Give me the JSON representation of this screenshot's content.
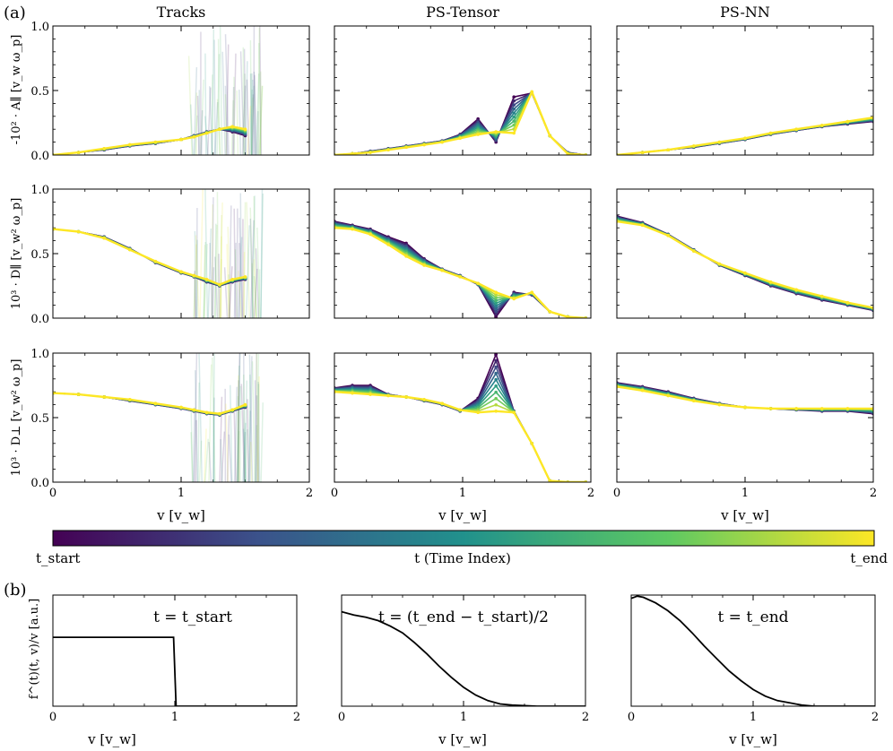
{
  "figure": {
    "panel_a_label": "(a)",
    "panel_b_label": "(b)",
    "col_titles": [
      "Tracks",
      "PS-Tensor",
      "PS-NN"
    ],
    "row_ylabels": [
      "-10² · A∥ [v_w ω_p]",
      "10³ · D∥ [v_w² ω_p]",
      "10³ · D⊥ [v_w² ω_p]"
    ],
    "xlabel": "v [v_w]",
    "colorbar": {
      "label": "t (Time Index)",
      "start_label": "t_start",
      "end_label": "t_end",
      "colors": [
        "#440154",
        "#3b528b",
        "#21918c",
        "#5ec962",
        "#fde725"
      ]
    },
    "b_ylabel": "f^(t)(t, v)/v [a.u.]",
    "b_titles": [
      "t = t_start",
      "t = (t_end − t_start)/2",
      "t = t_end"
    ]
  },
  "chart_data": [
    {
      "type": "line",
      "panel": "a",
      "row": 0,
      "col": 0,
      "title": "Tracks",
      "xlim": [
        0,
        2
      ],
      "ylim": [
        0,
        1
      ],
      "xticks": [
        "0",
        "1",
        "2"
      ],
      "yticks": [
        "0.0",
        "0.5",
        "1.0"
      ],
      "x": [
        0,
        0.2,
        0.4,
        0.6,
        0.8,
        1.0,
        1.1,
        1.2,
        1.3,
        1.4,
        1.5
      ],
      "series_start": [
        0.0,
        0.02,
        0.04,
        0.07,
        0.09,
        0.12,
        0.15,
        0.18,
        0.2,
        0.18,
        0.15
      ],
      "series_end": [
        0.0,
        0.02,
        0.05,
        0.08,
        0.1,
        0.12,
        0.14,
        0.17,
        0.2,
        0.22,
        0.2
      ]
    },
    {
      "type": "line",
      "panel": "a",
      "row": 0,
      "col": 1,
      "title": "PS-Tensor",
      "xlim": [
        0,
        2
      ],
      "ylim": [
        0,
        1
      ],
      "xticks": [
        "0",
        "1",
        "2"
      ],
      "yticks": [
        "0.0",
        "0.5",
        "1.0"
      ],
      "x": [
        0,
        0.14,
        0.28,
        0.42,
        0.56,
        0.7,
        0.84,
        0.98,
        1.12,
        1.26,
        1.4,
        1.54,
        1.68,
        1.82,
        1.96
      ],
      "series_start": [
        0.0,
        0.01,
        0.03,
        0.05,
        0.07,
        0.09,
        0.11,
        0.16,
        0.28,
        0.1,
        0.45,
        0.48,
        0.15,
        0.02,
        0.0
      ],
      "series_end": [
        0.0,
        0.01,
        0.02,
        0.04,
        0.06,
        0.08,
        0.1,
        0.13,
        0.16,
        0.18,
        0.17,
        0.49,
        0.15,
        0.01,
        0.0
      ]
    },
    {
      "type": "line",
      "panel": "a",
      "row": 0,
      "col": 2,
      "title": "PS-NN",
      "xlim": [
        0,
        2
      ],
      "ylim": [
        0,
        1
      ],
      "xticks": [
        "0",
        "1",
        "2"
      ],
      "yticks": [
        "0.0",
        "0.5",
        "1.0"
      ],
      "x": [
        0,
        0.2,
        0.4,
        0.6,
        0.8,
        1.0,
        1.2,
        1.4,
        1.6,
        1.8,
        2.0
      ],
      "series_start": [
        0.0,
        0.02,
        0.04,
        0.06,
        0.09,
        0.12,
        0.16,
        0.19,
        0.22,
        0.24,
        0.26
      ],
      "series_end": [
        0.0,
        0.02,
        0.04,
        0.07,
        0.1,
        0.13,
        0.17,
        0.2,
        0.23,
        0.26,
        0.29
      ]
    },
    {
      "type": "line",
      "panel": "a",
      "row": 1,
      "col": 0,
      "xlim": [
        0,
        2
      ],
      "ylim": [
        0,
        1
      ],
      "xticks": [
        "0",
        "1",
        "2"
      ],
      "yticks": [
        "0.0",
        "0.5",
        "1.0"
      ],
      "x": [
        0,
        0.2,
        0.4,
        0.6,
        0.8,
        1.0,
        1.1,
        1.2,
        1.3,
        1.4,
        1.5
      ],
      "series_start": [
        0.69,
        0.67,
        0.63,
        0.54,
        0.43,
        0.35,
        0.32,
        0.28,
        0.25,
        0.28,
        0.3
      ],
      "series_end": [
        0.69,
        0.67,
        0.62,
        0.53,
        0.44,
        0.36,
        0.33,
        0.3,
        0.26,
        0.3,
        0.32
      ]
    },
    {
      "type": "line",
      "panel": "a",
      "row": 1,
      "col": 1,
      "xlim": [
        0,
        2
      ],
      "ylim": [
        0,
        1
      ],
      "xticks": [
        "0",
        "1",
        "2"
      ],
      "yticks": [
        "0.0",
        "0.5",
        "1.0"
      ],
      "x": [
        0,
        0.14,
        0.28,
        0.42,
        0.56,
        0.7,
        0.84,
        0.98,
        1.12,
        1.26,
        1.4,
        1.54,
        1.68,
        1.82,
        1.96
      ],
      "series_start": [
        0.75,
        0.72,
        0.69,
        0.63,
        0.58,
        0.46,
        0.38,
        0.33,
        0.26,
        0.01,
        0.2,
        0.18,
        0.05,
        0.01,
        0.0
      ],
      "series_end": [
        0.7,
        0.69,
        0.65,
        0.57,
        0.48,
        0.41,
        0.37,
        0.32,
        0.27,
        0.2,
        0.15,
        0.2,
        0.05,
        0.01,
        0.0
      ]
    },
    {
      "type": "line",
      "panel": "a",
      "row": 1,
      "col": 2,
      "xlim": [
        0,
        2
      ],
      "ylim": [
        0,
        1
      ],
      "xticks": [
        "0",
        "1",
        "2"
      ],
      "yticks": [
        "0.0",
        "0.5",
        "1.0"
      ],
      "x": [
        0,
        0.2,
        0.4,
        0.6,
        0.8,
        1.0,
        1.2,
        1.4,
        1.6,
        1.8,
        2.0
      ],
      "series_start": [
        0.79,
        0.74,
        0.65,
        0.53,
        0.41,
        0.33,
        0.25,
        0.19,
        0.14,
        0.1,
        0.06
      ],
      "series_end": [
        0.75,
        0.72,
        0.64,
        0.52,
        0.42,
        0.35,
        0.28,
        0.22,
        0.17,
        0.12,
        0.08
      ]
    },
    {
      "type": "line",
      "panel": "a",
      "row": 2,
      "col": 0,
      "xlim": [
        0,
        2
      ],
      "ylim": [
        0,
        1
      ],
      "xticks": [
        "0",
        "1",
        "2"
      ],
      "yticks": [
        "0.0",
        "0.5",
        "1.0"
      ],
      "x": [
        0,
        0.2,
        0.4,
        0.6,
        0.8,
        1.0,
        1.1,
        1.2,
        1.3,
        1.4,
        1.5
      ],
      "series_start": [
        0.69,
        0.68,
        0.66,
        0.63,
        0.6,
        0.57,
        0.55,
        0.53,
        0.52,
        0.55,
        0.58
      ],
      "series_end": [
        0.69,
        0.68,
        0.66,
        0.64,
        0.61,
        0.58,
        0.56,
        0.54,
        0.53,
        0.56,
        0.6
      ]
    },
    {
      "type": "line",
      "panel": "a",
      "row": 2,
      "col": 1,
      "xlim": [
        0,
        2
      ],
      "ylim": [
        0,
        1
      ],
      "xticks": [
        "0",
        "1",
        "2"
      ],
      "yticks": [
        "0.0",
        "0.5",
        "1.0"
      ],
      "x": [
        0,
        0.14,
        0.28,
        0.42,
        0.56,
        0.7,
        0.84,
        0.98,
        1.12,
        1.26,
        1.4,
        1.54,
        1.68,
        1.82,
        1.96
      ],
      "series_start": [
        0.73,
        0.75,
        0.75,
        0.68,
        0.66,
        0.63,
        0.6,
        0.55,
        0.65,
        0.99,
        0.55,
        0.3,
        0.01,
        0.0,
        0.0
      ],
      "series_end": [
        0.7,
        0.69,
        0.68,
        0.67,
        0.66,
        0.64,
        0.61,
        0.56,
        0.54,
        0.55,
        0.54,
        0.3,
        0.01,
        0.0,
        0.0
      ]
    },
    {
      "type": "line",
      "panel": "a",
      "row": 2,
      "col": 2,
      "xlim": [
        0,
        2
      ],
      "ylim": [
        0,
        1
      ],
      "xticks": [
        "0",
        "1",
        "2"
      ],
      "yticks": [
        "0.0",
        "0.5",
        "1.0"
      ],
      "x": [
        0,
        0.2,
        0.4,
        0.6,
        0.8,
        1.0,
        1.2,
        1.4,
        1.6,
        1.8,
        2.0
      ],
      "series_start": [
        0.77,
        0.74,
        0.7,
        0.65,
        0.61,
        0.58,
        0.57,
        0.56,
        0.55,
        0.55,
        0.53
      ],
      "series_end": [
        0.74,
        0.71,
        0.67,
        0.63,
        0.6,
        0.58,
        0.57,
        0.57,
        0.57,
        0.57,
        0.57
      ]
    },
    {
      "type": "line",
      "panel": "b",
      "col": 0,
      "title": "t = t_start",
      "xlim": [
        0,
        2
      ],
      "ylim": [
        0,
        1
      ],
      "xticks": [
        "0",
        "1",
        "2"
      ],
      "x": [
        0,
        0.2,
        0.4,
        0.6,
        0.8,
        0.99,
        1.01,
        1.1,
        1.5,
        2.0
      ],
      "values": [
        0.62,
        0.62,
        0.62,
        0.62,
        0.62,
        0.62,
        0.0,
        0.0,
        0.0,
        0.0
      ]
    },
    {
      "type": "line",
      "panel": "b",
      "col": 1,
      "title": "t = (t_end − t_start)/2",
      "xlim": [
        0,
        2
      ],
      "ylim": [
        0,
        1
      ],
      "xticks": [
        "0",
        "1",
        "2"
      ],
      "x": [
        0,
        0.1,
        0.2,
        0.3,
        0.4,
        0.5,
        0.6,
        0.7,
        0.8,
        0.9,
        1.0,
        1.1,
        1.2,
        1.3,
        1.4,
        1.6,
        1.8,
        2.0
      ],
      "values": [
        0.85,
        0.82,
        0.8,
        0.77,
        0.72,
        0.66,
        0.57,
        0.47,
        0.36,
        0.26,
        0.17,
        0.1,
        0.05,
        0.02,
        0.01,
        0.0,
        0.0,
        0.0
      ]
    },
    {
      "type": "line",
      "panel": "b",
      "col": 2,
      "title": "t = t_end",
      "xlim": [
        0,
        2
      ],
      "ylim": [
        0,
        1
      ],
      "xticks": [
        "0",
        "1",
        "2"
      ],
      "x": [
        0,
        0.05,
        0.1,
        0.2,
        0.3,
        0.4,
        0.5,
        0.6,
        0.7,
        0.8,
        0.9,
        1.0,
        1.1,
        1.2,
        1.3,
        1.4,
        1.5,
        1.7,
        2.0
      ],
      "values": [
        0.97,
        0.99,
        0.98,
        0.93,
        0.86,
        0.77,
        0.66,
        0.54,
        0.43,
        0.32,
        0.23,
        0.15,
        0.09,
        0.05,
        0.03,
        0.01,
        0.0,
        0.0,
        0.0
      ]
    }
  ]
}
